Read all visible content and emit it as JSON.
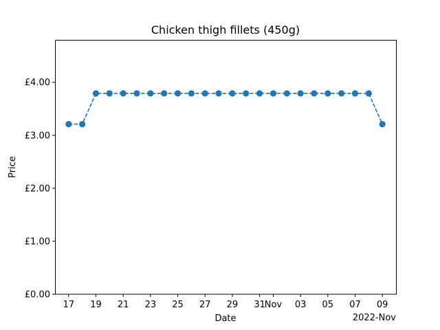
{
  "chart_data": {
    "type": "line",
    "title": "Chicken thigh fillets (450g)",
    "xlabel": "Date",
    "ylabel": "Price",
    "x": [
      "2022-10-17",
      "2022-10-18",
      "2022-10-19",
      "2022-10-20",
      "2022-10-21",
      "2022-10-22",
      "2022-10-23",
      "2022-10-24",
      "2022-10-25",
      "2022-10-26",
      "2022-10-27",
      "2022-10-28",
      "2022-10-29",
      "2022-10-30",
      "2022-10-31",
      "2022-11-01",
      "2022-11-02",
      "2022-11-03",
      "2022-11-04",
      "2022-11-05",
      "2022-11-06",
      "2022-11-07",
      "2022-11-08",
      "2022-11-09"
    ],
    "series": [
      {
        "values": [
          3.21,
          3.21,
          3.79,
          3.79,
          3.79,
          3.79,
          3.79,
          3.79,
          3.79,
          3.79,
          3.79,
          3.79,
          3.79,
          3.79,
          3.79,
          3.79,
          3.79,
          3.79,
          3.79,
          3.79,
          3.79,
          3.79,
          3.79,
          3.21
        ]
      }
    ],
    "ylim": [
      0,
      4.8
    ],
    "xlim": [
      "2022-10-16",
      "2022-11-10"
    ],
    "yticks": [
      0,
      1,
      2,
      3,
      4
    ],
    "ytick_labels": [
      "£0.00",
      "£1.00",
      "£2.00",
      "£3.00",
      "£4.00"
    ],
    "xticks": [
      "2022-10-17",
      "2022-10-19",
      "2022-10-21",
      "2022-10-23",
      "2022-10-25",
      "2022-10-27",
      "2022-10-29",
      "2022-10-31",
      "2022-11-01",
      "2022-11-03",
      "2022-11-05",
      "2022-11-07",
      "2022-11-09"
    ],
    "xtick_labels": [
      "17",
      "19",
      "21",
      "23",
      "25",
      "27",
      "29",
      "31",
      "Nov",
      "03",
      "05",
      "07",
      "09"
    ],
    "x_offset_label": "2022-Nov",
    "line_style": "dashed",
    "marker": "circle",
    "color": "#1f77b4",
    "grid": false,
    "legend": false
  }
}
